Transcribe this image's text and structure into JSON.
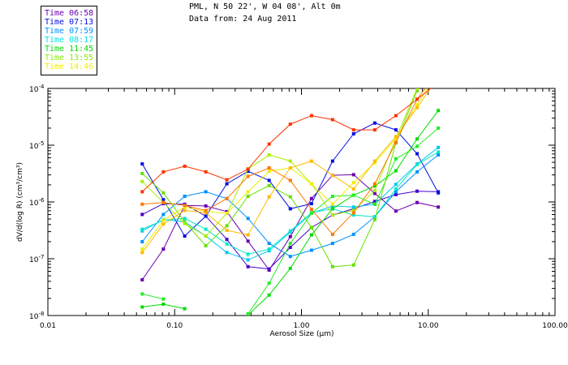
{
  "header": {
    "location": "PML, N 50 22', W 04 08', Alt 0m",
    "date": "Data from: 24 Aug 2011"
  },
  "legend": [
    {
      "label": "Time 06:58",
      "color": "#6a00b0"
    },
    {
      "label": "Time 07:13",
      "color": "#0010e0"
    },
    {
      "label": "Time 07:59",
      "color": "#0090ff"
    },
    {
      "label": "Time 08:17",
      "color": "#00e0e0"
    },
    {
      "label": "Time 11:45",
      "color": "#00dd00"
    },
    {
      "label": "Time 13:55",
      "color": "#88ee00"
    },
    {
      "label": "Time 14:46",
      "color": "#eeee00"
    }
  ],
  "chart_data": {
    "type": "line",
    "xscale": "log",
    "yscale": "log",
    "xlabel": "Aerosol Size (μm)",
    "ylabel": "dV/d(log R) (cm³/cm³)",
    "xlim": [
      0.01,
      100
    ],
    "ylim": [
      1e-08,
      0.0001
    ],
    "xticks": [
      "0.01",
      "0.10",
      "1.00",
      "10.00",
      "100.00"
    ],
    "yticks": [
      {
        "base": "10",
        "exp": "-4"
      },
      {
        "base": "10",
        "exp": "-5"
      },
      {
        "base": "10",
        "exp": "-6"
      },
      {
        "base": "10",
        "exp": "-7"
      },
      {
        "base": "10",
        "exp": "-8"
      }
    ],
    "x": [
      0.0555,
      0.0815,
      0.12,
      0.176,
      0.258,
      0.379,
      0.556,
      0.817,
      1.2,
      1.76,
      2.58,
      3.79,
      5.56,
      8.17,
      12.0
    ],
    "y_units": "log10",
    "series": [
      {
        "color": "#6a00b0",
        "log10_y": [
          -7.37,
          -6.83,
          -6.06,
          -6.07,
          -6.17,
          -6.69,
          -7.2,
          -6.61,
          -5.94,
          -5.53,
          -5.52,
          -5.85,
          -6.16,
          -6.01,
          -6.09
        ]
      },
      {
        "color": "#4400cc",
        "log10_y": [
          -6.22,
          -6.03,
          -6.04,
          -6.25,
          -6.66,
          -7.14,
          -7.18,
          -6.8,
          -6.45,
          -6.23,
          -6.12,
          -5.99,
          -5.87,
          -5.81,
          -5.82
        ]
      },
      {
        "color": "#0010e0",
        "log10_y": [
          -5.33,
          -5.96,
          -6.6,
          -6.25,
          -5.68,
          -5.46,
          -5.62,
          -6.12,
          -6.03,
          -5.28,
          -4.8,
          -4.61,
          -4.73,
          -5.15,
          -5.84
        ]
      },
      {
        "color": "#0090ff",
        "log10_y": [
          -6.7,
          -6.22,
          -5.9,
          -5.82,
          -5.94,
          -6.29,
          -6.73,
          -6.96,
          -6.85,
          -6.73,
          -6.57,
          -6.26,
          -5.82,
          -5.47,
          -5.17
        ]
      },
      {
        "color": "#00c8f0",
        "log10_y": [
          -6.51,
          -6.31,
          -6.35,
          -6.6,
          -6.89,
          -7.02,
          -6.86,
          -6.53,
          -6.2,
          -6.07,
          -6.09,
          -6.04,
          -5.69,
          -5.33,
          -5.04
        ]
      },
      {
        "color": "#00e8c8",
        "log10_y": [
          -6.48,
          -6.32,
          -6.29,
          -6.48,
          -6.74,
          -6.92,
          -6.83,
          -6.51,
          -6.19,
          -6.12,
          -6.23,
          -6.26,
          -5.77,
          -5.34,
          -5.12
        ]
      },
      {
        "color": "#00dd00",
        "log10_y": [
          -7.85,
          -7.8,
          -7.88,
          null,
          null,
          -7.99,
          -7.64,
          -7.17,
          -6.58,
          -6.12,
          -5.88,
          -5.72,
          -5.45,
          -4.89,
          -4.39
        ]
      },
      {
        "color": "#22ee22",
        "log10_y": [
          -7.62,
          -7.71,
          null,
          null,
          null,
          -7.97,
          -7.43,
          -6.73,
          -6.2,
          -5.9,
          -5.88,
          -6.04,
          -5.24,
          -5.02,
          -4.7
        ]
      },
      {
        "color": "#66e000",
        "log10_y": [
          -5.5,
          -5.84,
          -6.35,
          -6.77,
          -6.42,
          -5.9,
          -5.71,
          -5.91,
          -6.45,
          -7.14,
          -7.11,
          -6.31,
          -4.96,
          -4.04,
          -3.5
        ]
      },
      {
        "color": "#aaee00",
        "log10_y": [
          -5.64,
          -6.01,
          -6.38,
          -6.6,
          -6.2,
          -5.42,
          -5.17,
          -5.28,
          -5.68,
          -6.23,
          -6.15,
          -5.8,
          -4.88,
          -4.0,
          -3.5
        ]
      },
      {
        "color": "#eeee00",
        "log10_y": [
          -6.83,
          -6.32,
          -6.09,
          -6.17,
          -6.2,
          -5.82,
          -5.46,
          -5.4,
          -5.68,
          -6.04,
          -5.66,
          -5.31,
          -4.88,
          -4.29,
          -3.7
        ]
      },
      {
        "color": "#ffbb00",
        "log10_y": [
          -6.89,
          -6.39,
          -6.15,
          -6.19,
          -6.5,
          -6.58,
          -5.91,
          -5.4,
          -5.28,
          -5.53,
          -5.77,
          -5.28,
          -4.85,
          -4.34,
          -3.8
        ]
      },
      {
        "color": "#ff7700",
        "log10_y": [
          -6.04,
          -6.01,
          -6.06,
          -6.15,
          -5.94,
          -5.55,
          -5.4,
          -5.62,
          -6.13,
          -6.57,
          -6.19,
          -5.68,
          -4.95,
          -4.19,
          -3.7
        ]
      },
      {
        "color": "#ff3300",
        "log10_y": [
          -5.82,
          -5.47,
          -5.37,
          -5.47,
          -5.61,
          -5.42,
          -4.98,
          -4.63,
          -4.48,
          -4.55,
          -4.73,
          -4.73,
          -4.48,
          -4.19,
          -3.9
        ]
      }
    ]
  }
}
